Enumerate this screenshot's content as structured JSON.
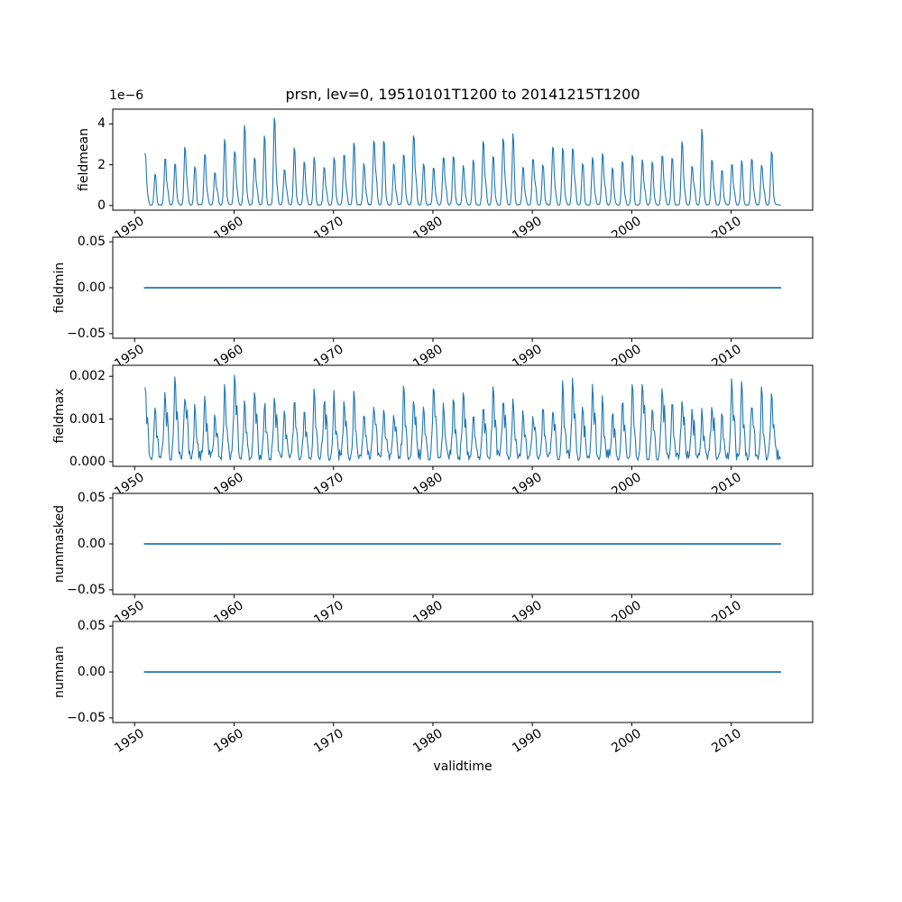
{
  "figure": {
    "title": "prsn, lev=0, 19510101T1200 to 20141215T1200",
    "xlabel": "validtime",
    "background_color": "#ffffff",
    "line_color": "#1f77b4",
    "spine_color": "#000000",
    "xlim": [
      1947.8,
      2018.2
    ],
    "x_data_start": 1951.0,
    "x_data_end": 2014.96,
    "x_ticks": [
      {
        "v": 1950,
        "label": "1950"
      },
      {
        "v": 1960,
        "label": "1960"
      },
      {
        "v": 1970,
        "label": "1970"
      },
      {
        "v": 1980,
        "label": "1980"
      },
      {
        "v": 1990,
        "label": "1990"
      },
      {
        "v": 2000,
        "label": "2000"
      },
      {
        "v": 2010,
        "label": "2010"
      }
    ]
  },
  "chart_data": [
    {
      "type": "line",
      "name": "fieldmean",
      "ylabel": "fieldmean",
      "offset_label": "1e−6",
      "value_unit": "1e-6",
      "ylim": [
        -0.225,
        4.725
      ],
      "yticks": [
        {
          "v": 0,
          "label": "0"
        },
        {
          "v": 2,
          "label": "2"
        },
        {
          "v": 4,
          "label": "4"
        }
      ],
      "series_kind": "annual_winter_peaks_monthly",
      "start_year": 1951,
      "annual_peak_values": [
        2.6,
        1.6,
        2.4,
        2.15,
        3.0,
        2.0,
        2.6,
        1.7,
        3.3,
        2.75,
        4.0,
        2.4,
        3.5,
        4.5,
        1.8,
        2.9,
        2.3,
        2.4,
        1.9,
        2.4,
        2.6,
        3.3,
        2.1,
        3.3,
        3.35,
        2.1,
        2.65,
        3.6,
        2.1,
        1.9,
        2.5,
        2.5,
        2.0,
        2.3,
        3.2,
        2.5,
        3.5,
        3.6,
        1.9,
        2.4,
        2.1,
        3.0,
        2.9,
        3.0,
        2.2,
        2.45,
        2.6,
        1.9,
        2.3,
        2.6,
        2.3,
        2.2,
        2.6,
        2.5,
        3.2,
        2.0,
        3.9,
        2.3,
        1.8,
        2.1,
        2.3,
        2.4,
        2.05,
        2.8
      ],
      "base_level": 0.02,
      "base_noise": 0.06,
      "peak_sigma_months": 1.2,
      "shoulder_pattern": [
        0.15,
        0.0,
        0.3,
        0.08,
        0.25,
        0.0,
        0.2,
        0.38,
        0.05,
        0.22,
        0.1,
        0.3,
        0.0,
        0.18,
        0.32,
        0.06
      ],
      "shoulder_offset_months": 3.0,
      "shoulder_sigma_months": 1.0,
      "second_shoulder_scale": 0.0,
      "amp_jitter": 0.06,
      "seed": 42,
      "line_width": 1.1
    },
    {
      "type": "line",
      "name": "fieldmin",
      "ylabel": "fieldmin",
      "constant_value": 0.0,
      "ylim": [
        -0.055,
        0.055
      ],
      "yticks": [
        {
          "v": -0.05,
          "label": "−0.05"
        },
        {
          "v": 0.0,
          "label": "0.00"
        },
        {
          "v": 0.05,
          "label": "0.05"
        }
      ],
      "line_width": 1.8
    },
    {
      "type": "line",
      "name": "fieldmax",
      "ylabel": "fieldmax",
      "value_unit": "1e-3",
      "ylim": [
        -0.1075,
        2.2575
      ],
      "yticks": [
        {
          "v": 0,
          "label": "0.000"
        },
        {
          "v": 1,
          "label": "0.001"
        },
        {
          "v": 2,
          "label": "0.002"
        }
      ],
      "series_kind": "annual_winter_peaks_monthly",
      "start_year": 1951,
      "annual_peak_values": [
        1.75,
        1.35,
        1.45,
        2.05,
        1.5,
        1.2,
        1.45,
        1.05,
        1.85,
        1.85,
        1.45,
        1.55,
        1.35,
        1.55,
        1.25,
        1.4,
        1.15,
        1.75,
        1.35,
        1.45,
        1.25,
        1.6,
        1.1,
        1.35,
        1.2,
        1.1,
        1.85,
        1.45,
        1.25,
        1.75,
        1.35,
        1.45,
        1.65,
        1.1,
        1.25,
        1.75,
        1.4,
        1.5,
        1.2,
        1.05,
        1.3,
        1.15,
        1.9,
        1.85,
        1.3,
        1.7,
        1.45,
        1.1,
        1.35,
        1.9,
        1.85,
        1.3,
        1.7,
        1.4,
        1.45,
        1.15,
        1.1,
        1.3,
        1.05,
        1.8,
        1.75,
        1.3,
        1.8,
        1.65
      ],
      "base_level": 0.03,
      "base_noise": 0.3,
      "peak_sigma_months": 0.95,
      "shoulder_pattern": [
        0.55,
        0.35,
        0.65,
        0.45,
        0.7,
        0.3,
        0.5,
        0.6,
        0.4,
        0.65,
        0.35,
        0.55,
        0.45,
        0.6,
        0.3,
        0.5
      ],
      "shoulder_offset_months": 2.8,
      "shoulder_sigma_months": 0.9,
      "second_shoulder_scale": 0.45,
      "amp_jitter": 0.08,
      "seed": 7,
      "line_width": 1.1
    },
    {
      "type": "line",
      "name": "nummasked",
      "ylabel": "nummasked",
      "constant_value": 0.0,
      "ylim": [
        -0.055,
        0.055
      ],
      "yticks": [
        {
          "v": -0.05,
          "label": "−0.05"
        },
        {
          "v": 0.0,
          "label": "0.00"
        },
        {
          "v": 0.05,
          "label": "0.05"
        }
      ],
      "line_width": 1.8
    },
    {
      "type": "line",
      "name": "numnan",
      "ylabel": "numnan",
      "constant_value": 0.0,
      "ylim": [
        -0.055,
        0.055
      ],
      "yticks": [
        {
          "v": -0.05,
          "label": "−0.05"
        },
        {
          "v": 0.0,
          "label": "0.00"
        },
        {
          "v": 0.05,
          "label": "0.05"
        }
      ],
      "line_width": 1.8
    }
  ]
}
